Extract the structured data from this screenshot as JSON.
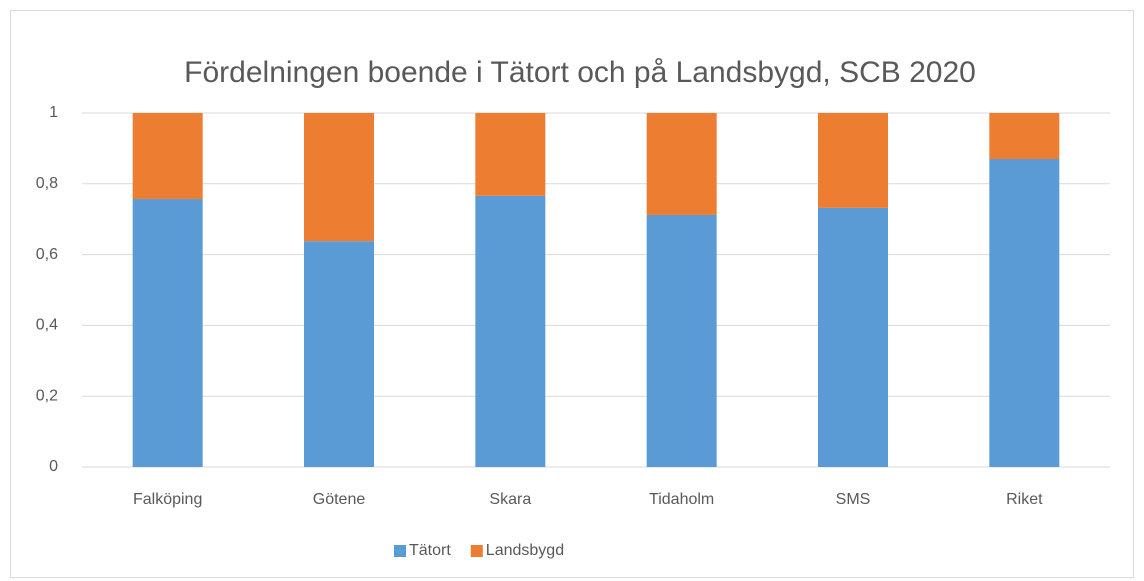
{
  "chart_data": {
    "type": "bar",
    "stacked": true,
    "title": "Fördelningen boende i Tätort och på Landsbygd, SCB 2020",
    "categories": [
      "Falköping",
      "Götene",
      "Skara",
      "Tidaholm",
      "SMS",
      "Riket"
    ],
    "series": [
      {
        "name": "Tätort",
        "color": "#5b9bd5",
        "values": [
          0.757,
          0.638,
          0.766,
          0.712,
          0.732,
          0.87
        ]
      },
      {
        "name": "Landsbygd",
        "color": "#ed7d31",
        "values": [
          0.243,
          0.362,
          0.234,
          0.288,
          0.268,
          0.13
        ]
      }
    ],
    "ylim": [
      0,
      1
    ],
    "yticks": [
      0,
      {
        "value": 0.2,
        "label": "0,2"
      },
      {
        "value": 0.4,
        "label": "0,4"
      },
      {
        "value": 0.6,
        "label": "0,6"
      },
      {
        "value": 0.8,
        "label": "0,8"
      },
      1
    ],
    "grid": true,
    "legend": "bottom"
  }
}
